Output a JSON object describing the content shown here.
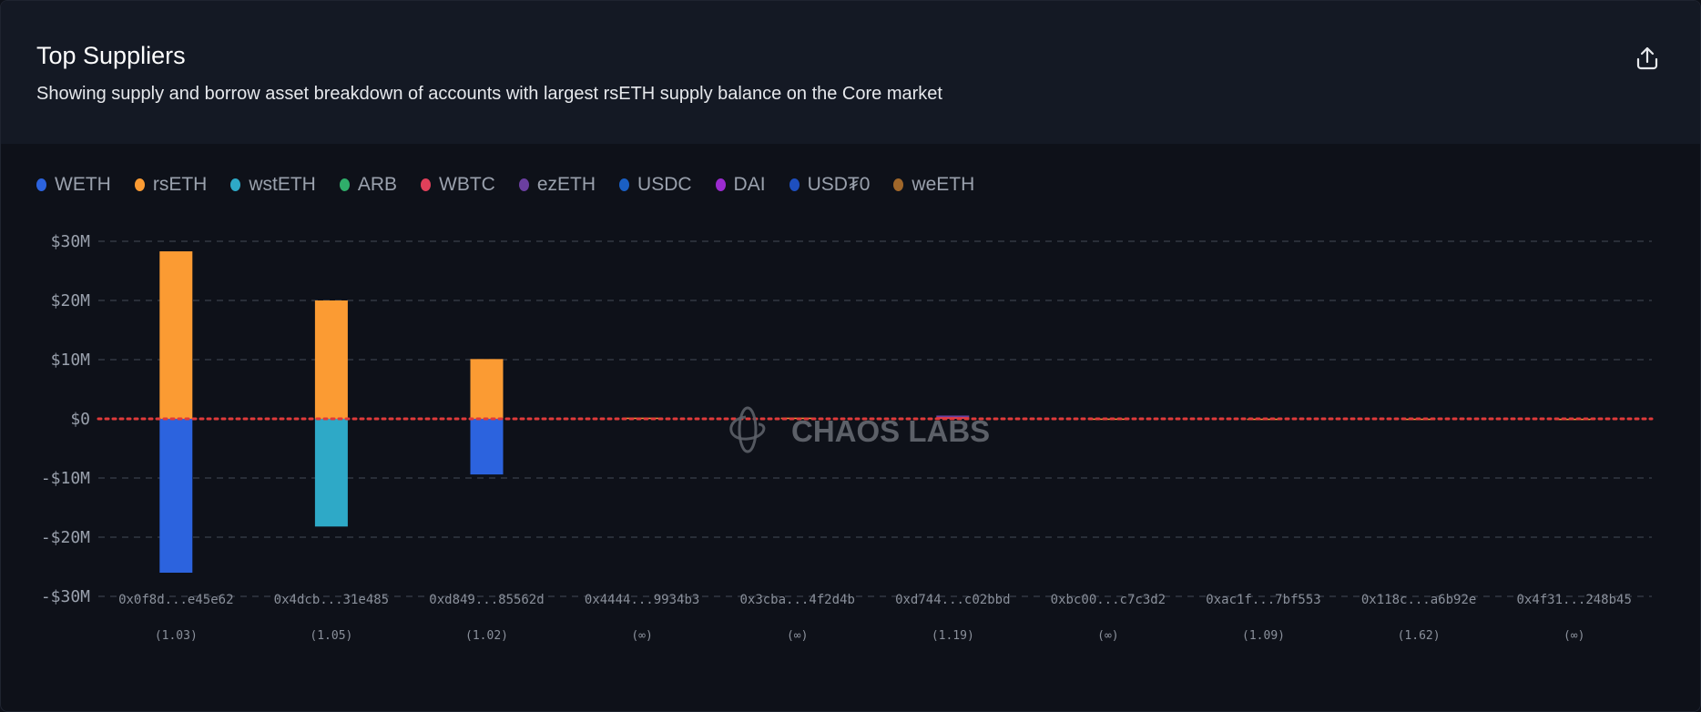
{
  "header": {
    "title": "Top Suppliers",
    "subtitle": "Showing supply and borrow asset breakdown of accounts with largest rsETH supply balance on the Core market",
    "share_icon": "share-icon"
  },
  "watermark": "CHAOS LABS",
  "chart_data": {
    "type": "bar",
    "stacked": true,
    "title": "Top Suppliers",
    "xlabel": "",
    "ylabel": "",
    "ylim": [
      -30000000,
      30000000
    ],
    "yticks": [
      30000000,
      20000000,
      10000000,
      0,
      -10000000,
      -20000000,
      -30000000
    ],
    "ytick_labels": [
      "$30M",
      "$20M",
      "$10M",
      "$0",
      "-$10M",
      "-$20M",
      "-$30M"
    ],
    "grid": true,
    "legend_position": "top-left",
    "categories": [
      "0x0f8d...e45e62",
      "0x4dcb...31e485",
      "0xd849...85562d",
      "0x4444...9934b3",
      "0x3cba...4f2d4b",
      "0xd744...c02bbd",
      "0xbc00...c7c3d2",
      "0xac1f...7bf553",
      "0x118c...a6b92e",
      "0x4f31...248b45"
    ],
    "health_factors": [
      "(1.03)",
      "(1.05)",
      "(1.02)",
      "(∞)",
      "(∞)",
      "(1.19)",
      "(∞)",
      "(1.09)",
      "(1.62)",
      "(∞)"
    ],
    "series": [
      {
        "name": "WETH",
        "color": "#2c63de",
        "values": [
          -26000000,
          0,
          -9400000,
          0,
          0,
          0,
          0,
          0,
          0,
          0
        ]
      },
      {
        "name": "rsETH",
        "color": "#fb9b33",
        "values": [
          28300000,
          20000000,
          10100000,
          200000,
          200000,
          0,
          50000,
          30000,
          30000,
          20000
        ]
      },
      {
        "name": "wstETH",
        "color": "#2ea9c7",
        "values": [
          0,
          -18200000,
          0,
          0,
          0,
          0,
          0,
          0,
          0,
          0
        ]
      },
      {
        "name": "ARB",
        "color": "#2fae6a",
        "values": [
          0,
          0,
          0,
          0,
          0,
          0,
          0,
          0,
          0,
          0
        ]
      },
      {
        "name": "WBTC",
        "color": "#e0405a",
        "values": [
          0,
          0,
          0,
          0,
          0,
          300000,
          0,
          0,
          0,
          0
        ]
      },
      {
        "name": "ezETH",
        "color": "#6b3fa0",
        "values": [
          0,
          0,
          0,
          0,
          0,
          250000,
          0,
          0,
          0,
          0
        ]
      },
      {
        "name": "USDC",
        "color": "#1a5fc4",
        "values": [
          0,
          0,
          0,
          0,
          0,
          0,
          0,
          0,
          0,
          0
        ]
      },
      {
        "name": "DAI",
        "color": "#9b2bd0",
        "values": [
          0,
          0,
          0,
          0,
          0,
          0,
          0,
          0,
          0,
          0
        ]
      },
      {
        "name": "USD₮0",
        "color": "#1e4fbf",
        "values": [
          0,
          0,
          0,
          0,
          0,
          0,
          0,
          0,
          0,
          0
        ]
      },
      {
        "name": "weETH",
        "color": "#a0672a",
        "values": [
          0,
          0,
          0,
          0,
          0,
          0,
          0,
          0,
          0,
          0
        ]
      }
    ]
  }
}
